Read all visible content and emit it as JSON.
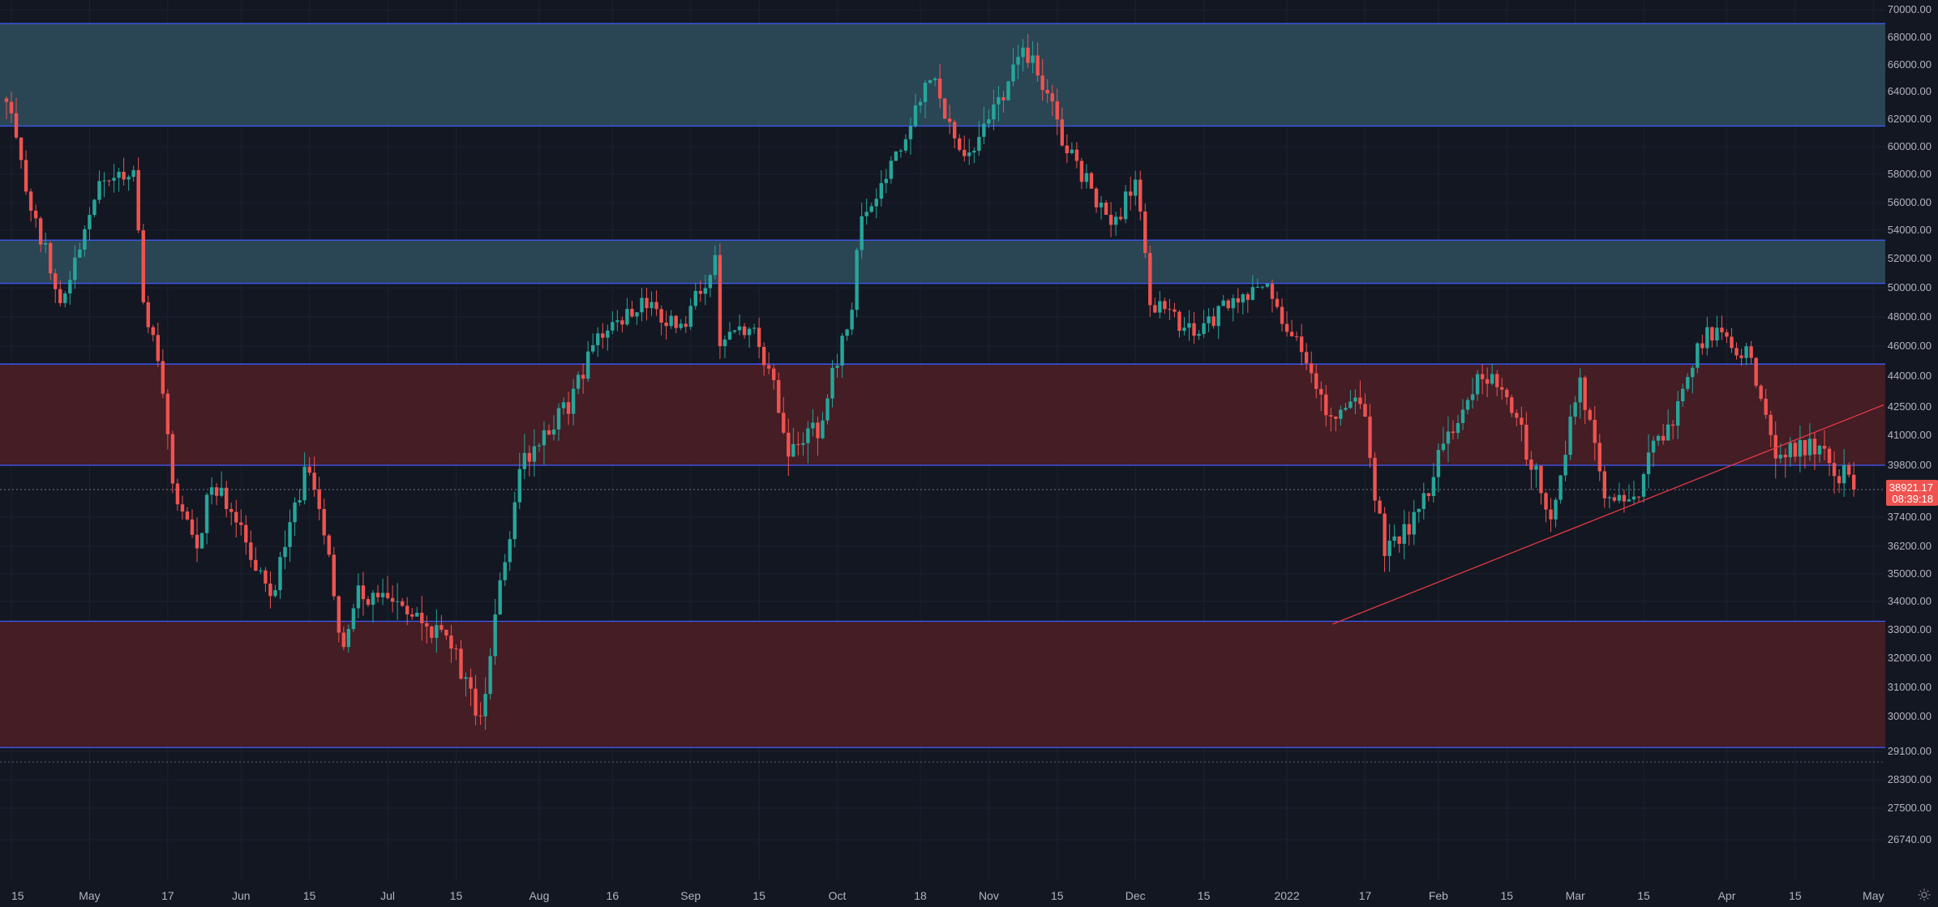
{
  "colors": {
    "background": "#131722",
    "grid": "#1e2230",
    "up": "#26a69a",
    "down": "#ef5350",
    "zone_teal": "#2e4a5a",
    "zone_red": "#4a1e26",
    "zone_border": "#3d5cff",
    "trendline": "#e53945",
    "axis_text": "#b2b5be",
    "price_tag_bg": "#ef5350"
  },
  "current_price": {
    "value": "38921.17",
    "countdown": "08:39:18"
  },
  "chart_data": {
    "type": "candlestick",
    "title": "",
    "xlabel": "",
    "ylabel": "",
    "price_axis_labels": [
      "70000.00",
      "68000.00",
      "66000.00",
      "64000.00",
      "62000.00",
      "60000.00",
      "58000.00",
      "56000.00",
      "54000.00",
      "52000.00",
      "50000.00",
      "48000.00",
      "46000.00",
      "44000.00",
      "42500.00",
      "41000.00",
      "39800.00",
      "38921.17",
      "37400.00",
      "36200.00",
      "35000.00",
      "34000.00",
      "33000.00",
      "32000.00",
      "31000.00",
      "30000.00",
      "29100.00",
      "28300.00",
      "27500.00",
      "26740.00"
    ],
    "time_axis_labels": [
      "15",
      "May",
      "17",
      "Jun",
      "15",
      "Jul",
      "15",
      "Aug",
      "16",
      "Sep",
      "15",
      "Oct",
      "18",
      "Nov",
      "15",
      "Dec",
      "15",
      "2022",
      "17",
      "Feb",
      "15",
      "Mar",
      "15",
      "Apr",
      "15",
      "May"
    ],
    "zones": [
      {
        "kind": "resistance",
        "low": 61500,
        "high": 69000
      },
      {
        "kind": "resistance",
        "low": 50300,
        "high": 53300
      },
      {
        "kind": "support",
        "low": 39800,
        "high": 44800
      },
      {
        "kind": "support",
        "low": 29200,
        "high": 33300
      }
    ],
    "trendline": {
      "from": {
        "date": "2022-01-15",
        "price": 34000
      },
      "to": {
        "date": "2022-04-30",
        "price": 42600
      }
    },
    "horizontal_dotted_levels": [
      28800
    ],
    "anchors": [
      {
        "date": "2021-04-14",
        "price": 63500
      },
      {
        "date": "2021-04-18",
        "price": 57000
      },
      {
        "date": "2021-04-25",
        "price": 49000
      },
      {
        "date": "2021-05-03",
        "price": 57500
      },
      {
        "date": "2021-05-10",
        "price": 58500
      },
      {
        "date": "2021-05-12",
        "price": 49500
      },
      {
        "date": "2021-05-19",
        "price": 38000
      },
      {
        "date": "2021-05-23",
        "price": 36000
      },
      {
        "date": "2021-05-26",
        "price": 39500
      },
      {
        "date": "2021-06-07",
        "price": 34000
      },
      {
        "date": "2021-06-15",
        "price": 40000
      },
      {
        "date": "2021-06-22",
        "price": 32000
      },
      {
        "date": "2021-06-25",
        "price": 34500
      },
      {
        "date": "2021-07-01",
        "price": 34000
      },
      {
        "date": "2021-07-14",
        "price": 32500
      },
      {
        "date": "2021-07-20",
        "price": 30000
      },
      {
        "date": "2021-07-25",
        "price": 35500
      },
      {
        "date": "2021-07-28",
        "price": 39500
      },
      {
        "date": "2021-08-07",
        "price": 42500
      },
      {
        "date": "2021-08-14",
        "price": 47000
      },
      {
        "date": "2021-08-22",
        "price": 49000
      },
      {
        "date": "2021-08-30",
        "price": 47000
      },
      {
        "date": "2021-09-06",
        "price": 52000
      },
      {
        "date": "2021-09-07",
        "price": 46500
      },
      {
        "date": "2021-09-14",
        "price": 47000
      },
      {
        "date": "2021-09-21",
        "price": 40500
      },
      {
        "date": "2021-09-28",
        "price": 41500
      },
      {
        "date": "2021-10-04",
        "price": 49000
      },
      {
        "date": "2021-10-06",
        "price": 55000
      },
      {
        "date": "2021-10-15",
        "price": 61000
      },
      {
        "date": "2021-10-20",
        "price": 65500
      },
      {
        "date": "2021-10-27",
        "price": 59000
      },
      {
        "date": "2021-11-02",
        "price": 63000
      },
      {
        "date": "2021-11-09",
        "price": 67000
      },
      {
        "date": "2021-11-17",
        "price": 60000
      },
      {
        "date": "2021-11-26",
        "price": 54000
      },
      {
        "date": "2021-12-01",
        "price": 57500
      },
      {
        "date": "2021-12-04",
        "price": 49000
      },
      {
        "date": "2021-12-13",
        "price": 47000
      },
      {
        "date": "2021-12-27",
        "price": 50500
      },
      {
        "date": "2022-01-01",
        "price": 47500
      },
      {
        "date": "2022-01-10",
        "price": 42000
      },
      {
        "date": "2022-01-16",
        "price": 43000
      },
      {
        "date": "2022-01-21",
        "price": 36000
      },
      {
        "date": "2022-01-26",
        "price": 37000
      },
      {
        "date": "2022-02-04",
        "price": 41500
      },
      {
        "date": "2022-02-10",
        "price": 44000
      },
      {
        "date": "2022-02-15",
        "price": 43000
      },
      {
        "date": "2022-02-24",
        "price": 37500
      },
      {
        "date": "2022-03-02",
        "price": 44000
      },
      {
        "date": "2022-03-07",
        "price": 38000
      },
      {
        "date": "2022-03-14",
        "price": 39000
      },
      {
        "date": "2022-03-22",
        "price": 42500
      },
      {
        "date": "2022-03-28",
        "price": 47200
      },
      {
        "date": "2022-04-05",
        "price": 45500
      },
      {
        "date": "2022-04-11",
        "price": 40500
      },
      {
        "date": "2022-04-18",
        "price": 40500
      },
      {
        "date": "2022-04-21",
        "price": 40000
      },
      {
        "date": "2022-04-24",
        "price": 39500
      },
      {
        "date": "2022-04-27",
        "price": 38921.17
      }
    ]
  }
}
